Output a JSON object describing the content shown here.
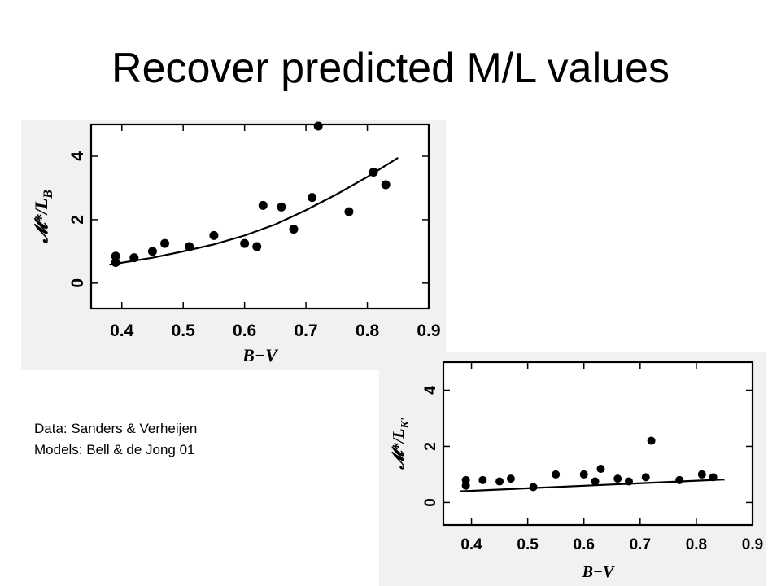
{
  "slide": {
    "title": "Recover predicted M/L values",
    "caption": {
      "line1": "Data: Sanders & Verheijen",
      "line2": "Models: Bell & de Jong 01"
    }
  },
  "chart_data": [
    {
      "type": "scatter",
      "panel": "B-band",
      "xlabel": "B−V",
      "ylabel": "𝓜*/L_B",
      "ylabel_main": "𝓜*/L",
      "ylabel_sub": "B",
      "xlim": [
        0.35,
        0.9
      ],
      "ylim": [
        -0.8,
        5
      ],
      "xticks": [
        "0.4",
        "0.5",
        "0.6",
        "0.7",
        "0.8",
        "0.9"
      ],
      "xtick_values": [
        0.4,
        0.5,
        0.6,
        0.7,
        0.8,
        0.9
      ],
      "yticks": [
        "0",
        "2",
        "4"
      ],
      "ytick_values": [
        0,
        2,
        4
      ],
      "grid": false,
      "series": [
        {
          "kind": "points",
          "x": [
            0.39,
            0.39,
            0.42,
            0.45,
            0.47,
            0.51,
            0.55,
            0.6,
            0.62,
            0.63,
            0.66,
            0.68,
            0.71,
            0.72,
            0.77,
            0.81,
            0.83
          ],
          "y": [
            0.65,
            0.85,
            0.8,
            1.0,
            1.25,
            1.15,
            1.5,
            1.25,
            1.15,
            2.45,
            2.4,
            1.7,
            2.7,
            4.95,
            2.25,
            3.5,
            3.1
          ]
        },
        {
          "kind": "line",
          "x": [
            0.38,
            0.45,
            0.5,
            0.55,
            0.6,
            0.65,
            0.7,
            0.75,
            0.8,
            0.85
          ],
          "y": [
            0.58,
            0.8,
            1.0,
            1.22,
            1.5,
            1.85,
            2.3,
            2.8,
            3.35,
            3.95
          ]
        }
      ]
    },
    {
      "type": "scatter",
      "panel": "K-band",
      "xlabel": "B−V",
      "ylabel": "𝓜*/L_K'",
      "ylabel_main": "𝓜*/L",
      "ylabel_sub": "K'",
      "xlim": [
        0.35,
        0.9
      ],
      "ylim": [
        -0.8,
        5
      ],
      "xticks": [
        "0.4",
        "0.5",
        "0.6",
        "0.7",
        "0.8",
        "0.9"
      ],
      "xtick_values": [
        0.4,
        0.5,
        0.6,
        0.7,
        0.8,
        0.9
      ],
      "yticks": [
        "0",
        "2",
        "4"
      ],
      "ytick_values": [
        0,
        2,
        4
      ],
      "grid": false,
      "series": [
        {
          "kind": "points",
          "x": [
            0.39,
            0.39,
            0.42,
            0.45,
            0.47,
            0.51,
            0.55,
            0.6,
            0.62,
            0.63,
            0.66,
            0.68,
            0.71,
            0.72,
            0.77,
            0.81,
            0.83
          ],
          "y": [
            0.6,
            0.8,
            0.8,
            0.75,
            0.85,
            0.55,
            1.0,
            1.0,
            0.75,
            1.2,
            0.85,
            0.75,
            0.9,
            2.2,
            0.8,
            1.0,
            0.9
          ]
        },
        {
          "kind": "line",
          "x": [
            0.38,
            0.85
          ],
          "y": [
            0.4,
            0.82
          ]
        }
      ]
    }
  ]
}
